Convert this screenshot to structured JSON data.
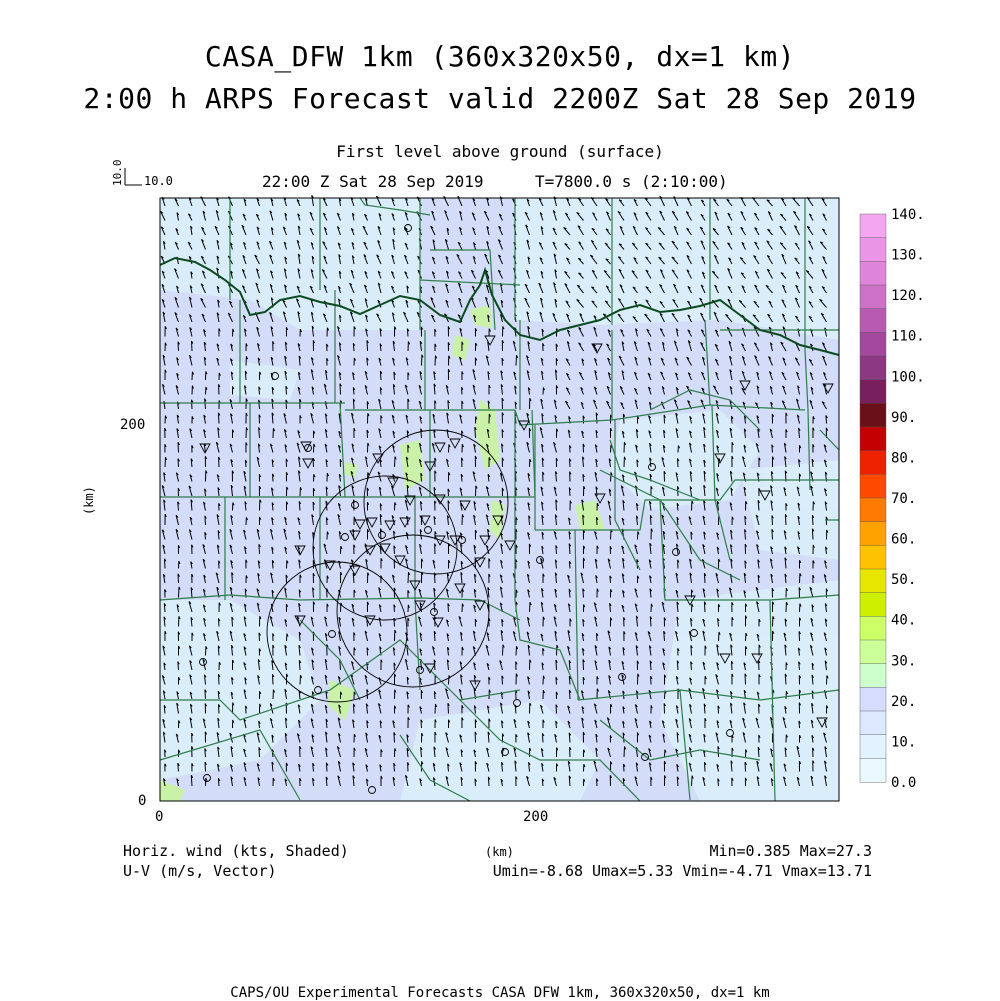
{
  "title": {
    "line1": "CASA_DFW 1km (360x320x50, dx=1 km)",
    "line2": "2:00 h ARPS Forecast valid 2200Z Sat 28 Sep 2019"
  },
  "subtitle": {
    "level": "First level above ground (surface)",
    "time": "22:00 Z Sat 28 Sep 2019",
    "elapsed": "T=7800.0 s (2:10:00)"
  },
  "vector_key": {
    "vertical": "10.0",
    "horizontal": "10.0"
  },
  "axes": {
    "ylabel": "(km)",
    "xlabel": "(km)",
    "x_ticks": [
      "0",
      "200"
    ],
    "y_ticks": [
      "0",
      "200"
    ],
    "x_range": [
      0,
      360
    ],
    "y_range": [
      0,
      320
    ]
  },
  "colorbar": {
    "labels": [
      "140.",
      "130.",
      "120.",
      "110.",
      "100.",
      "90.",
      "80.",
      "70.",
      "60.",
      "50.",
      "40.",
      "30.",
      "20.",
      "10.",
      "0.0"
    ],
    "colors": [
      "#f4a6f0",
      "#eb95e6",
      "#df85d9",
      "#cd71c6",
      "#b95ab2",
      "#a3489c",
      "#8c3882",
      "#78205e",
      "#6a1018",
      "#c40000",
      "#ee2200",
      "#ff4a00",
      "#ff7a00",
      "#ffa200",
      "#ffc200",
      "#e6e600",
      "#ccf000",
      "#ccff66",
      "#ccff99",
      "#ccffcc",
      "#d6dcff",
      "#dbe8ff",
      "#e2f2ff",
      "#eaf8ff"
    ]
  },
  "field": {
    "name": "Horiz. wind (kts, Shaded)",
    "vector": "U-V (m/s, Vector)",
    "min_max": "Min=0.385 Max=27.3",
    "uv_range": "Umin=-8.68 Umax=5.33 Vmin=-4.71 Vmax=13.71"
  },
  "footer": "CAPS/OU Experimental Forecasts  CASA DFW 1km, 360x320x50, dx=1 km",
  "colors": {
    "background_shade": "#d3dcf8",
    "light_shade": "#daeefa",
    "county_lines": "#2f7d4a",
    "river_line": "#0b4a1e",
    "high_wind_shade": "#c9f2a8"
  }
}
